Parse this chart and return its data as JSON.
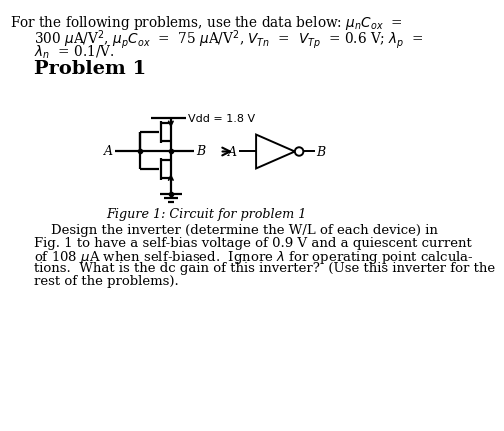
{
  "bg_color": "#ffffff",
  "text_color": "#000000",
  "line_color": "#000000",
  "vdd_label": "Vdd = 1.8 V",
  "figure_caption": "Figure 1: Circuit for problem 1",
  "header_line1": "For the following problems, use the data below: $\\mu_n C_{ox}$  =",
  "header_line2": "300 $\\mu$A/V$^2$, $\\mu_p C_{ox}$  =  75 $\\mu$A/V$^2$, $V_{Tn}$  =  $V_{Tp}$  = 0.6 V; $\\lambda_p$  =",
  "header_line3": "$\\lambda_n$  = 0.1/V.",
  "problem_heading": "Problem 1",
  "prob_line1": "    Design the inverter (determine the W/L of each device) in",
  "prob_line2": "Fig. 1 to have a self-bias voltage of 0.9 V and a quiescent current",
  "prob_line3": "of 108 $\\mu$A when self-biased.  Ignore $\\lambda$ for operating point calcula-",
  "prob_line4": "tions.  What is the dc gain of this inverter?  (Use this inverter for the",
  "prob_line5": "rest of the problems)."
}
